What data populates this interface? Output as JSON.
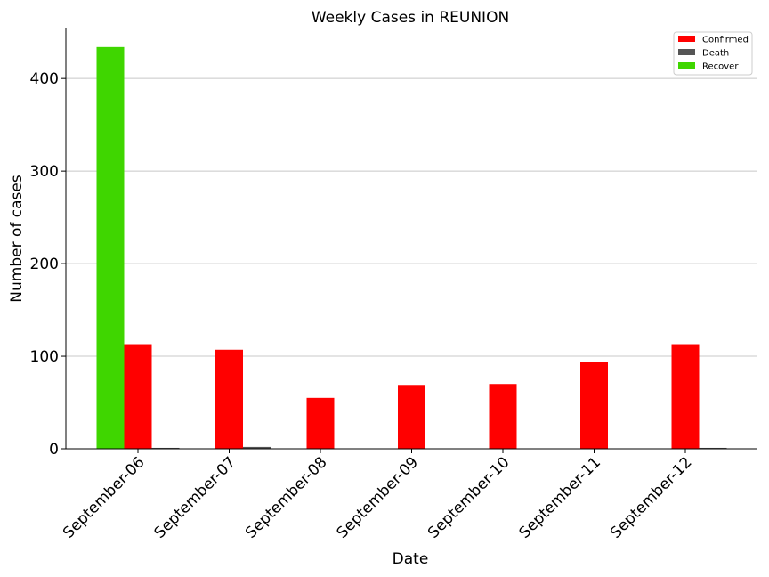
{
  "chart_data": {
    "type": "bar",
    "title": "Weekly Cases in REUNION",
    "xlabel": "Date",
    "ylabel": "Number of cases",
    "categories": [
      "September-06",
      "September-07",
      "September-08",
      "September-09",
      "September-10",
      "September-11",
      "September-12"
    ],
    "series": [
      {
        "name": "Confirmed",
        "color": "#ff0000",
        "values": [
          113,
          107,
          55,
          69,
          70,
          94,
          113
        ]
      },
      {
        "name": "Death",
        "color": "#555555",
        "values": [
          1,
          2,
          0,
          0,
          0,
          0,
          1
        ]
      },
      {
        "name": "Recover",
        "color": "#3fd600",
        "values": [
          434,
          0,
          0,
          0,
          0,
          0,
          0
        ]
      }
    ],
    "ylim": [
      0,
      455
    ],
    "yticks": [
      0,
      100,
      200,
      300,
      400
    ],
    "grid": "horizontal",
    "legend_position": "top-right"
  }
}
